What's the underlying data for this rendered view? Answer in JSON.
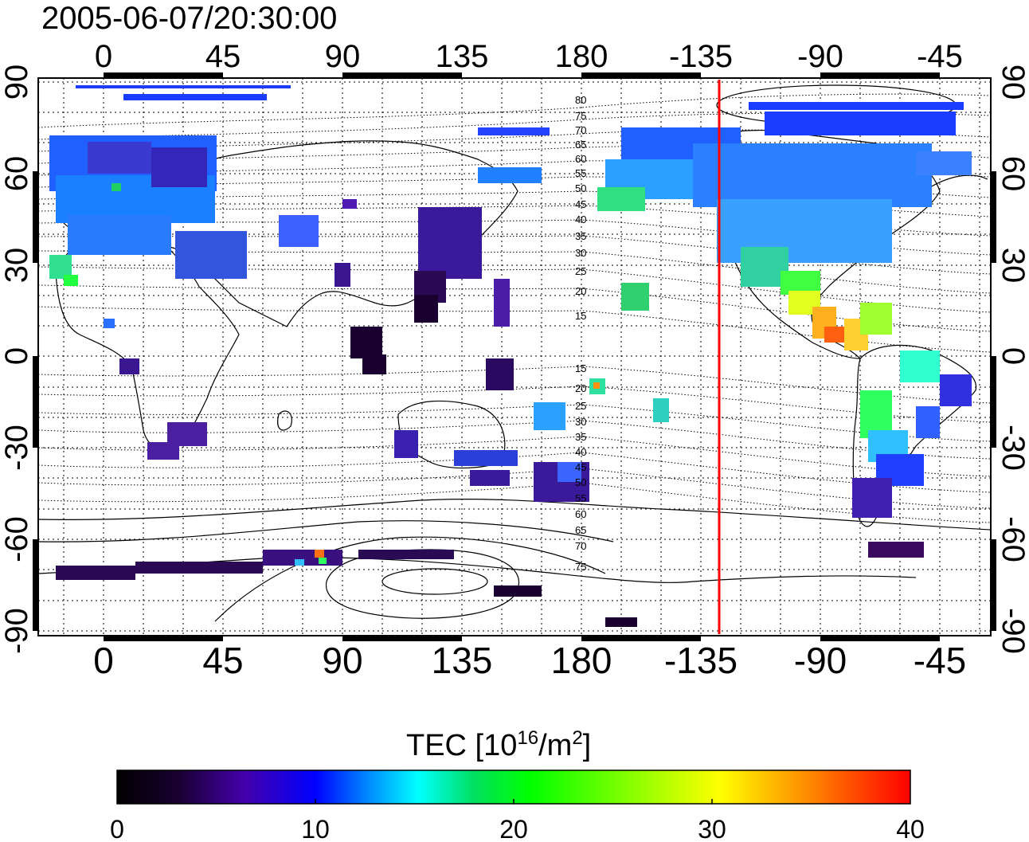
{
  "title": "2005-06-07/20:30:00",
  "map": {
    "lon_ticks_top": [
      "0",
      "45",
      "90",
      "135",
      "180",
      "-135",
      "-90",
      "-45"
    ],
    "lon_ticks_bottom": [
      "0",
      "45",
      "90",
      "135",
      "180",
      "-135",
      "-90",
      "-45"
    ],
    "lat_ticks_left": [
      "90",
      "60",
      "30",
      "0",
      "-30",
      "-60",
      "-90"
    ],
    "lat_ticks_right": [
      "90",
      "60",
      "30",
      "0",
      "-30",
      "-60",
      "-90"
    ],
    "lon_range": [
      -25,
      335
    ],
    "lat_range": [
      -90,
      90
    ],
    "grid": true,
    "terminator_line": {
      "lon": 233,
      "color": "#ff0000"
    },
    "contour_labels_north": [
      "80",
      "75",
      "70",
      "65",
      "60",
      "55",
      "50",
      "45",
      "40",
      "35",
      "30",
      "25",
      "20",
      "15"
    ],
    "contour_labels_south": [
      "15",
      "20",
      "25",
      "30",
      "35",
      "40",
      "45",
      "50",
      "55",
      "60",
      "65",
      "70",
      "75"
    ]
  },
  "colorbar": {
    "title": "TEC  [10",
    "title_sup1": "16",
    "title_mid": "/m",
    "title_sup2": "2",
    "title_end": "]",
    "ticks": [
      "0",
      "10",
      "20",
      "30",
      "40"
    ],
    "range": [
      0,
      40
    ],
    "stops": [
      "#000000",
      "#1a0033",
      "#4400aa",
      "#0000ff",
      "#0090ff",
      "#00ffff",
      "#00e060",
      "#00ff00",
      "#ffff00",
      "#ff8000",
      "#ff0000"
    ]
  }
}
